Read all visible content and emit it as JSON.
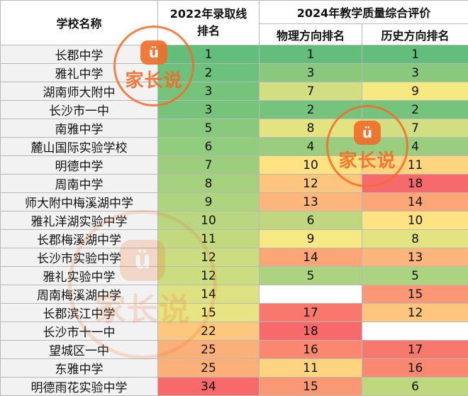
{
  "header": {
    "school_name": "学校名称",
    "admission_rank_2022": "2022年录取线排名",
    "eval_2024": "2024年教学质量综合评价",
    "physics_rank": "物理方向排名",
    "history_rank": "历史方向排名"
  },
  "rows": [
    {
      "name": "长郡中学",
      "rank2022": "1",
      "physics": "1",
      "history": "1"
    },
    {
      "name": "雅礼中学",
      "rank2022": "2",
      "physics": "3",
      "history": "3"
    },
    {
      "name": "湖南师大附中",
      "rank2022": "3",
      "physics": "7",
      "history": "9"
    },
    {
      "name": "长沙市一中",
      "rank2022": "3",
      "physics": "2",
      "history": "2"
    },
    {
      "name": "南雅中学",
      "rank2022": "5",
      "physics": "8",
      "history": "7"
    },
    {
      "name": "麓山国际实验学校",
      "rank2022": "6",
      "physics": "4",
      "history": "4"
    },
    {
      "name": "明德中学",
      "rank2022": "7",
      "physics": "10",
      "history": "11"
    },
    {
      "name": "周南中学",
      "rank2022": "8",
      "physics": "12",
      "history": "18"
    },
    {
      "name": "师大附中梅溪湖中学",
      "rank2022": "9",
      "physics": "13",
      "history": "14"
    },
    {
      "name": "雅礼洋湖实验中学",
      "rank2022": "10",
      "physics": "6",
      "history": "10"
    },
    {
      "name": "长郡梅溪湖中学",
      "rank2022": "11",
      "physics": "9",
      "history": "8"
    },
    {
      "name": "长沙市实验中学",
      "rank2022": "12",
      "physics": "14",
      "history": "13"
    },
    {
      "name": "雅礼实验中学",
      "rank2022": "12",
      "physics": "5",
      "history": "5"
    },
    {
      "name": "周南梅溪湖中学",
      "rank2022": "14",
      "physics": "",
      "history": "15"
    },
    {
      "name": "长郡滨江中学",
      "rank2022": "15",
      "physics": "17",
      "history": "12"
    },
    {
      "name": "长沙市十一中",
      "rank2022": "22",
      "physics": "18",
      "history": ""
    },
    {
      "name": "望城区一中",
      "rank2022": "25",
      "physics": "16",
      "history": "17"
    },
    {
      "name": "东雅中学",
      "rank2022": "25",
      "physics": "11",
      "history": "16"
    },
    {
      "name": "明德雨花实验中学",
      "rank2022": "34",
      "physics": "15",
      "history": "6"
    }
  ],
  "watermark": {
    "brand": "家长说",
    "icon": "speech-bubble-smile-icon",
    "glyph": "ü"
  },
  "colors": {
    "scale_best": "#63be7b",
    "scale_mid": "#ffeb84",
    "scale_worst": "#f8696b",
    "brand_orange": "#f26c28"
  }
}
